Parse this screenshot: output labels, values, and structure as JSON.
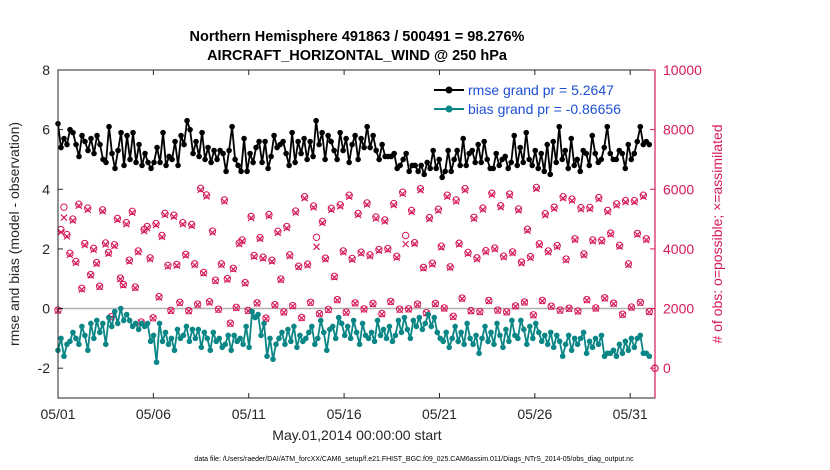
{
  "chart_data": {
    "type": "line",
    "title_line1": "Northern Hemisphere 491863 / 500491 = 98.276%",
    "title_line2": "AIRCRAFT_HORIZONTAL_WIND @ 250 hPa",
    "xlabel": "May.01,2014 00:00:00 start",
    "ylabel_left": "rmse and bias (model - observation)",
    "ylabel_right": "# of obs: o=possible; ×=assimilated",
    "footnote": "data file: /Users/raeder/DAI/ATM_forcXX/CAM6_setup/f.e21.FHIST_BGC.f09_025.CAM6assim.011/Diags_NTrS_2014-05/obs_diag_output.nc",
    "x_ticks": [
      "05/01",
      "05/06",
      "05/11",
      "05/16",
      "05/21",
      "05/26",
      "05/31"
    ],
    "x_tick_days": [
      0,
      5,
      10,
      15,
      20,
      25,
      30
    ],
    "x_range_days": [
      0,
      31.3
    ],
    "y_left_ticks": [
      "-2",
      "0",
      "2",
      "4",
      "6",
      "8"
    ],
    "y_left_tick_values": [
      -2,
      0,
      2,
      4,
      6,
      8
    ],
    "y_left_range": [
      -3,
      8
    ],
    "y_right_ticks": [
      "0",
      "2000",
      "4000",
      "6000",
      "8000",
      "10000"
    ],
    "y_right_tick_values": [
      0,
      2000,
      4000,
      6000,
      8000,
      10000
    ],
    "y_right_range": [
      -1000,
      10000
    ],
    "legend_position": "top-right",
    "colors": {
      "rmse": "#000000",
      "bias": "#0b8686",
      "obs": "#d6195a",
      "right_axis": "#d6195a",
      "legend_text": "#1e4fd6",
      "zero_line": "#b0b0b0"
    },
    "series": [
      {
        "name": "rmse grand pr = 5.2647",
        "key": "rmse",
        "axis": "left",
        "values": [
          6.2,
          5.4,
          5.7,
          5.5,
          6.0,
          5.9,
          5.5,
          5.1,
          5.8,
          5.6,
          5.3,
          5.7,
          5.2,
          5.8,
          5.5,
          5.0,
          4.9,
          6.1,
          5.2,
          4.7,
          5.3,
          5.9,
          4.8,
          5.8,
          5.0,
          5.9,
          4.9,
          5.5,
          4.8,
          5.2,
          4.9,
          4.7,
          4.9,
          5.4,
          4.9,
          5.9,
          4.8,
          5.1,
          5.0,
          5.6,
          4.8,
          5.8,
          5.5,
          6.3,
          6.0,
          5.2,
          5.6,
          5.1,
          5.9,
          5.0,
          5.4,
          4.9,
          5.3,
          5.0,
          5.3,
          5.2,
          4.6,
          5.3,
          6.1,
          5.0,
          4.8,
          4.6,
          5.7,
          4.6,
          5.2,
          4.9,
          5.4,
          5.6,
          4.9,
          5.6,
          4.7,
          5.1,
          5.8,
          5.4,
          5.5,
          5.6,
          5.2,
          4.8,
          5.9,
          4.9,
          5.6,
          5.2,
          5.7,
          5.0,
          5.6,
          5.1,
          6.3,
          5.5,
          5.9,
          5.0,
          5.8,
          5.6,
          5.3,
          5.0,
          5.9,
          5.3,
          5.7,
          4.9,
          5.5,
          5.8,
          5.0,
          5.7,
          5.4,
          6.1,
          5.4,
          5.8,
          5.3,
          5.0,
          5.5,
          5.1,
          5.1,
          5.1,
          5.2,
          4.7,
          4.8,
          5.0,
          5.2,
          4.6,
          4.8,
          4.8,
          4.6,
          4.8,
          4.5,
          4.9,
          4.7,
          5.3,
          4.7,
          5.0,
          4.4,
          4.6,
          5.3,
          4.6,
          5.0,
          5.3,
          4.8,
          5.7,
          4.8,
          5.2,
          5.3,
          4.9,
          5.5,
          4.9,
          5.6,
          5.0,
          4.7,
          4.7,
          5.2,
          4.8,
          5.0,
          5.1,
          4.7,
          4.9,
          5.8,
          4.8,
          5.4,
          4.9,
          5.9,
          5.0,
          4.8,
          5.3,
          4.7,
          5.2,
          4.6,
          5.5,
          4.5,
          5.6,
          4.9,
          6.1,
          5.0,
          5.3,
          4.7,
          5.7,
          4.8,
          5.0,
          4.6,
          5.3,
          5.2,
          4.8,
          5.8,
          5.2,
          4.9,
          5.0,
          5.4,
          6.1,
          5.2,
          5.0,
          5.0,
          5.3,
          5.2,
          4.7,
          5.5,
          5.0,
          5.2,
          5.6,
          6.1,
          5.5,
          5.6,
          5.5
        ]
      },
      {
        "name": "bias grand pr = -0.86656",
        "key": "bias",
        "axis": "left",
        "values": [
          -1.4,
          -1.0,
          -1.6,
          -1.2,
          -1.1,
          -0.8,
          -1.0,
          -1.2,
          -0.6,
          -0.9,
          -1.4,
          -0.5,
          -1.0,
          -0.4,
          -0.8,
          -0.5,
          -1.2,
          -0.3,
          -0.6,
          -0.1,
          -0.5,
          0.0,
          -0.4,
          -0.2,
          -0.4,
          -0.6,
          -0.5,
          -0.7,
          -0.5,
          -0.6,
          -0.5,
          -1.1,
          -0.9,
          -1.8,
          -0.5,
          -1.1,
          -0.8,
          -1.2,
          -1.0,
          -1.4,
          -0.7,
          -1.0,
          -0.9,
          -0.6,
          -1.1,
          -0.7,
          -1.0,
          -0.7,
          -1.3,
          -0.8,
          -1.0,
          -1.4,
          -0.8,
          -1.1,
          -1.0,
          -1.3,
          -1.2,
          -0.9,
          -1.4,
          -0.9,
          -1.1,
          -1.0,
          -1.2,
          -0.6,
          -1.3,
          -0.1,
          -0.3,
          -0.2,
          -0.9,
          -0.5,
          -1.6,
          -1.0,
          -1.7,
          -1.2,
          -1.0,
          -0.8,
          -1.2,
          -0.7,
          -1.1,
          -0.6,
          -1.3,
          -0.9,
          -1.1,
          -1.0,
          -0.8,
          -0.6,
          -1.2,
          -1.0,
          -0.4,
          -0.8,
          -1.4,
          -0.7,
          -0.6,
          -1.0,
          -0.3,
          -0.5,
          -0.9,
          -0.6,
          -1.0,
          -0.4,
          -0.8,
          -1.2,
          -0.5,
          -0.9,
          -1.0,
          -0.8,
          -1.1,
          -0.4,
          -0.9,
          -0.7,
          -1.0,
          -0.6,
          -1.1,
          -0.9,
          -0.4,
          -0.8,
          -0.3,
          -0.7,
          -1.0,
          -0.4,
          -0.6,
          -0.3,
          -0.7,
          -0.5,
          -0.2,
          -0.6,
          -0.3,
          -0.8,
          -1.0,
          -1.1,
          -0.8,
          -1.3,
          -1.0,
          -0.6,
          -1.1,
          -0.8,
          -1.2,
          -0.5,
          -1.0,
          -1.2,
          -0.9,
          -1.5,
          -1.0,
          -0.6,
          -1.1,
          -0.8,
          -1.2,
          -0.5,
          -0.9,
          -1.3,
          -0.7,
          -1.1,
          -0.4,
          -0.9,
          -1.0,
          -0.4,
          -0.7,
          -1.2,
          -0.6,
          -1.0,
          -0.5,
          -0.8,
          -1.1,
          -0.9,
          -1.2,
          -0.8,
          -1.3,
          -0.9,
          -1.1,
          -1.6,
          -1.2,
          -0.9,
          -1.4,
          -1.0,
          -1.2,
          -1.0,
          -0.8,
          -1.5,
          -1.1,
          -1.3,
          -1.0,
          -1.2,
          -0.9,
          -1.6,
          -1.5,
          -1.5,
          -1.4,
          -1.6,
          -1.2,
          -1.5,
          -1.1,
          -1.4,
          -1.0,
          -1.3,
          -1.0,
          -0.9,
          -1.5,
          -1.5,
          -1.6
        ]
      },
      {
        "name": "obs possible",
        "key": "obs",
        "axis": "right",
        "marker": "o",
        "values": [
          1950,
          4650,
          5400,
          4480,
          3850,
          5000,
          3580,
          5500,
          2680,
          4180,
          5370,
          3140,
          4020,
          3540,
          2750,
          5310,
          4200,
          3880,
          1730,
          4140,
          5020,
          3020,
          2810,
          4880,
          3620,
          5260,
          2720,
          3930,
          1550,
          4650,
          4750,
          3700,
          1690,
          4850,
          2400,
          4450,
          5190,
          3450,
          1940,
          5130,
          3480,
          2210,
          4880,
          3820,
          1930,
          4820,
          3500,
          2150,
          6030,
          3210,
          5810,
          2230,
          4600,
          2950,
          1980,
          3500,
          5640,
          3000,
          1510,
          3350,
          2040,
          4200,
          4300,
          2870,
          1940,
          5090,
          3780,
          2190,
          4380,
          3720,
          1680,
          5150,
          3620,
          2130,
          4590,
          2990,
          1890,
          4750,
          3800,
          2100,
          5270,
          3420,
          1700,
          5750,
          3490,
          2210,
          5440,
          4390,
          1830,
          4920,
          3690,
          1970,
          5360,
          3080,
          2300,
          5480,
          3930,
          1880,
          5800,
          3680,
          2190,
          5190,
          3890,
          1990,
          5540,
          3800,
          2170,
          5070,
          3980,
          1830,
          4970,
          4010,
          2240,
          5520,
          3750,
          1980,
          5900,
          4450,
          1990,
          5290,
          4210,
          2150,
          6020,
          3380,
          1860,
          5050,
          3520,
          2170,
          5330,
          4090,
          2020,
          5800,
          3400,
          1740,
          5640,
          4190,
          2350,
          6020,
          3880,
          1930,
          5060,
          3700,
          1900,
          5370,
          3940,
          2270,
          5870,
          4030,
          1950,
          5450,
          3760,
          1890,
          5840,
          3900,
          2090,
          5340,
          3560,
          2220,
          4660,
          3740,
          1790,
          6060,
          4170,
          2270,
          5180,
          3930,
          2080,
          5400,
          4110,
          1950,
          5750,
          3660,
          2010,
          5670,
          4340,
          1920,
          5380,
          3830,
          2300,
          5390,
          4300,
          2020,
          5720,
          4290,
          2360,
          5290,
          4530,
          2180,
          5510,
          4120,
          1810,
          5620,
          3500,
          2050,
          5620,
          4520,
          2210,
          5800,
          4340,
          1900
        ]
      },
      {
        "name": "obs assimilated",
        "key": "assim",
        "axis": "right",
        "marker": "x",
        "values": [
          1930,
          4560,
          5050,
          4420,
          3800,
          4950,
          3530,
          5450,
          2640,
          4130,
          5310,
          3110,
          3970,
          3500,
          2720,
          5260,
          4150,
          3840,
          1710,
          4100,
          4970,
          2990,
          2780,
          4830,
          3580,
          5210,
          2690,
          3890,
          1530,
          4600,
          4700,
          3660,
          1670,
          4800,
          2370,
          4400,
          5140,
          3410,
          1920,
          5080,
          3440,
          2180,
          4830,
          3780,
          1910,
          4770,
          3460,
          2130,
          5980,
          3180,
          5760,
          2200,
          4550,
          2920,
          1960,
          3460,
          5590,
          2970,
          1490,
          3320,
          2020,
          4160,
          4260,
          2840,
          1920,
          5040,
          3740,
          2170,
          4340,
          3680,
          1660,
          5100,
          3580,
          2110,
          4540,
          2960,
          1870,
          4700,
          3760,
          2080,
          5220,
          3390,
          1680,
          5700,
          3450,
          2190,
          5390,
          4070,
          1810,
          4870,
          3650,
          1950,
          5310,
          3050,
          2280,
          5430,
          3890,
          1860,
          5750,
          3640,
          2170,
          5140,
          3850,
          1970,
          5490,
          3760,
          2150,
          5020,
          3940,
          1810,
          4920,
          3970,
          2220,
          5470,
          3710,
          1960,
          5850,
          4160,
          1970,
          5240,
          4170,
          2130,
          5970,
          3350,
          1840,
          5000,
          3480,
          2150,
          5280,
          4050,
          2000,
          5750,
          3370,
          1720,
          5590,
          4150,
          2330,
          5970,
          3840,
          1910,
          5010,
          3660,
          1880,
          5320,
          3900,
          2250,
          5820,
          3990,
          1930,
          5400,
          3720,
          1870,
          5790,
          3860,
          2070,
          5290,
          3520,
          2200,
          4610,
          3700,
          1770,
          6010,
          4130,
          2250,
          5130,
          3890,
          2060,
          5350,
          4070,
          1930,
          5700,
          3620,
          1990,
          5620,
          4300,
          1900,
          5330,
          3790,
          2280,
          5340,
          4260,
          2000,
          5670,
          4250,
          2340,
          5240,
          4490,
          2160,
          5460,
          4080,
          1790,
          5570,
          3460,
          2030,
          5570,
          4480,
          2190,
          5750,
          4300,
          1880
        ]
      }
    ],
    "right_end_marker": {
      "value": 0,
      "marker": "o"
    }
  }
}
